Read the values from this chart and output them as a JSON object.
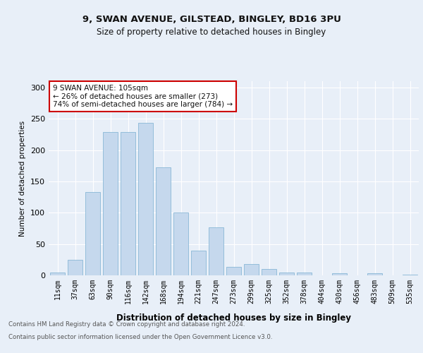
{
  "title1": "9, SWAN AVENUE, GILSTEAD, BINGLEY, BD16 3PU",
  "title2": "Size of property relative to detached houses in Bingley",
  "xlabel": "Distribution of detached houses by size in Bingley",
  "ylabel": "Number of detached properties",
  "annotation_line1": "9 SWAN AVENUE: 105sqm",
  "annotation_line2": "← 26% of detached houses are smaller (273)",
  "annotation_line3": "74% of semi-detached houses are larger (784) →",
  "categories": [
    "11sqm",
    "37sqm",
    "63sqm",
    "90sqm",
    "116sqm",
    "142sqm",
    "168sqm",
    "194sqm",
    "221sqm",
    "247sqm",
    "273sqm",
    "299sqm",
    "325sqm",
    "352sqm",
    "378sqm",
    "404sqm",
    "430sqm",
    "456sqm",
    "483sqm",
    "509sqm",
    "535sqm"
  ],
  "values": [
    5,
    25,
    133,
    229,
    229,
    244,
    172,
    100,
    40,
    77,
    13,
    18,
    10,
    5,
    5,
    0,
    3,
    0,
    3,
    0,
    1
  ],
  "bar_color": "#c5d8ed",
  "bar_edge_color": "#7aaed0",
  "background_color": "#e8eff8",
  "plot_bg_color": "#e8eff8",
  "grid_color": "#ffffff",
  "annotation_box_color": "#ffffff",
  "annotation_box_edge": "#cc0000",
  "footer1": "Contains HM Land Registry data © Crown copyright and database right 2024.",
  "footer2": "Contains public sector information licensed under the Open Government Licence v3.0.",
  "ylim": [
    0,
    310
  ],
  "yticks": [
    0,
    50,
    100,
    150,
    200,
    250,
    300
  ]
}
